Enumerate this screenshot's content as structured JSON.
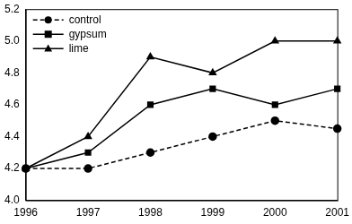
{
  "chart_data": {
    "type": "line",
    "categories": [
      "1996",
      "1997",
      "1998",
      "1999",
      "2000",
      "2001"
    ],
    "series": [
      {
        "name": "control",
        "color": "#000000",
        "marker": "circle",
        "line_style": "dashed",
        "values": [
          4.2,
          4.2,
          4.3,
          4.4,
          4.5,
          4.45
        ]
      },
      {
        "name": "gypsum",
        "color": "#000000",
        "marker": "square",
        "line_style": "solid",
        "values": [
          4.2,
          4.3,
          4.6,
          4.7,
          4.6,
          4.7
        ]
      },
      {
        "name": "lime",
        "color": "#000000",
        "marker": "triangle",
        "line_style": "solid",
        "values": [
          4.2,
          4.4,
          4.9,
          4.8,
          5.0,
          5.0
        ]
      }
    ],
    "ylim": [
      4.0,
      5.2
    ],
    "yticks": [
      {
        "value": 4.0,
        "label": "4.0"
      },
      4.2,
      4.4,
      4.6,
      4.8,
      {
        "value": 5.0,
        "label": "5.0"
      },
      5.2
    ],
    "grid": false,
    "legend": "top-left"
  }
}
